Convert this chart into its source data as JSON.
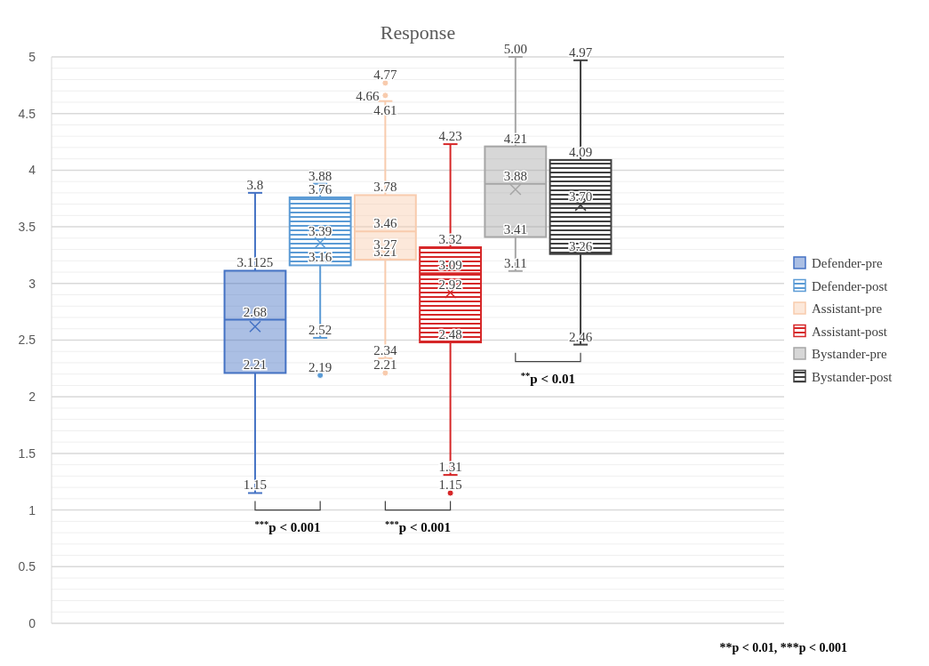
{
  "chart_data": {
    "type": "box",
    "title": "Response",
    "categories": [
      null
    ],
    "ylim": [
      0,
      5
    ],
    "yticks": [
      0,
      0.5,
      1,
      1.5,
      2,
      2.5,
      3,
      3.5,
      4,
      4.5,
      5
    ],
    "grid": "y",
    "legend": "right",
    "series": [
      {
        "name": "Defender-pre",
        "color": "#4472c4",
        "boxes": [
          {
            "low": 1.15,
            "q1": 2.21,
            "median": 2.68,
            "q3": 3.1125,
            "high": 3.8,
            "mean": 2.62
          }
        ]
      },
      {
        "name": "Defender-post",
        "color": "#5b9bd5",
        "boxes": [
          {
            "low": 2.52,
            "q1": 3.16,
            "median": 3.39,
            "q3": 3.76,
            "high": 3.88,
            "mean": 3.36,
            "outliers": [
              2.19
            ]
          }
        ]
      },
      {
        "name": "Assistant-pre",
        "color": "#f8cbad",
        "boxes": [
          {
            "low": 2.34,
            "q1": 3.21,
            "median": 3.46,
            "q3": 3.78,
            "high": 4.61,
            "mean": 3.27,
            "outliers": [
              2.21,
              4.66,
              4.77
            ]
          }
        ]
      },
      {
        "name": "Assistant-post",
        "color": "#d62728",
        "boxes": [
          {
            "low": 1.31,
            "q1": 2.48,
            "median": 3.09,
            "q3": 3.32,
            "high": 4.23,
            "mean": 2.92,
            "outliers": [
              1.15
            ]
          }
        ]
      },
      {
        "name": "Bystander-pre",
        "color": "#a6a6a6",
        "boxes": [
          {
            "low": 3.11,
            "q1": 3.41,
            "median": 3.88,
            "q3": 4.21,
            "high": 5.0,
            "mean": 3.83
          }
        ]
      },
      {
        "name": "Bystander-post",
        "color": "#404040",
        "boxes": [
          {
            "low": 2.46,
            "q1": 3.26,
            "median": 3.7,
            "q3": 4.09,
            "high": 4.97,
            "mean": 3.69
          }
        ]
      }
    ],
    "annotations": [
      "$^{***}$p < 0.001",
      "$^{***}$p < 0.001",
      "$^{**}$p < 0.01",
      "**p < 0.01, ***p < 0.001",
      "2.19",
      "4.77",
      "4.66",
      "3.27",
      "2.21",
      "2.92",
      "1.15",
      {
        "text": "3.8",
        "y": 3.8
      },
      {
        "text": "3.1125",
        "y": 3.1125
      },
      {
        "text": "2.68",
        "y": 2.68
      },
      {
        "text": "2.21",
        "y": 2.21
      },
      {
        "text": "1.15",
        "y": 1.15
      },
      {
        "text": "3.88",
        "y": 3.88
      },
      {
        "text": "3.76",
        "y": 3.76
      },
      {
        "text": "3.39",
        "y": 3.39
      },
      {
        "text": "3.16",
        "y": 3.16
      },
      {
        "text": "2.52",
        "y": 2.52
      },
      {
        "text": "4.61",
        "y": 4.61
      },
      {
        "text": "3.78",
        "y": 3.78
      },
      {
        "text": "3.46",
        "y": 3.46
      },
      {
        "text": "3.21",
        "y": 3.21
      },
      {
        "text": "2.34",
        "y": 2.34
      },
      {
        "text": "4.23",
        "y": 4.23
      },
      {
        "text": "3.32",
        "y": 3.32
      },
      {
        "text": "3.09",
        "y": 3.09
      },
      {
        "text": "2.48",
        "y": 2.48
      },
      {
        "text": "1.31",
        "y": 1.31
      },
      {
        "text": "5.00",
        "y": 5.0
      },
      {
        "text": "4.21",
        "y": 4.21
      },
      {
        "text": "3.88",
        "y": 3.88
      },
      {
        "text": "3.41",
        "y": 3.41
      },
      {
        "text": "3.11",
        "y": 3.11
      },
      {
        "text": "4.97",
        "y": 4.97
      },
      {
        "text": "4.09",
        "y": 4.09
      },
      {
        "text": "3.70",
        "y": 3.7
      },
      {
        "text": "3.26",
        "y": 3.26
      },
      {
        "text": "2.46",
        "y": 2.46
      }
    ]
  }
}
